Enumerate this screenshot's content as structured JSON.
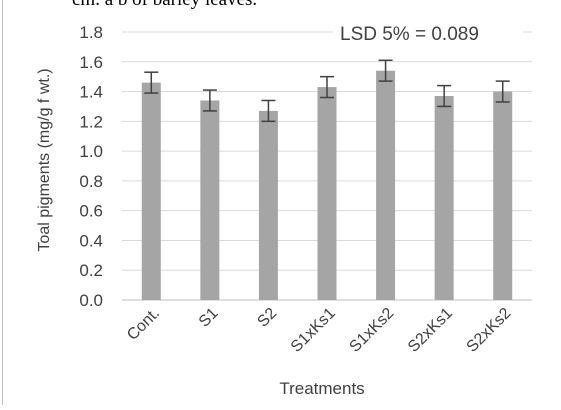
{
  "caption_fragment": "cm. a b of barley leaves.",
  "chart_data": {
    "type": "bar",
    "categories": [
      "Cont.",
      "S1",
      "S2",
      "S1xKs1",
      "S1xKs2",
      "S2xKs1",
      "S2xKs2"
    ],
    "values": [
      1.46,
      1.34,
      1.27,
      1.43,
      1.54,
      1.37,
      1.4
    ],
    "error": 0.07,
    "title": "",
    "xlabel": "Treatments",
    "ylabel": "Toal pigments (mg/g f wt.)",
    "ylim": [
      0,
      1.8
    ],
    "yticks": [
      "0.0",
      "0.2",
      "0.4",
      "0.6",
      "0.8",
      "1.0",
      "1.2",
      "1.4",
      "1.6",
      "1.8"
    ],
    "annotation": "LSD 5% = 0.089",
    "grid": true,
    "legend": "none",
    "colors": {
      "bar": "#a5a5a5",
      "grid": "#d9d9d9",
      "error": "#404040",
      "text": "#404040"
    }
  }
}
